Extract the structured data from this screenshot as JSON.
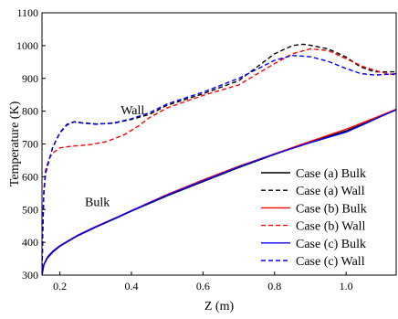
{
  "chart_data": {
    "type": "line",
    "xlabel": "Z (m)",
    "ylabel": "Temperature (K)",
    "xlim": [
      0.15,
      1.14
    ],
    "ylim": [
      300,
      1100
    ],
    "xticks": [
      0.2,
      0.4,
      0.6,
      0.8,
      1.0
    ],
    "xtick_labels": [
      "0.2",
      "0.4",
      "0.6",
      "0.8",
      "1.0"
    ],
    "yticks": [
      300,
      400,
      500,
      600,
      700,
      800,
      900,
      1000,
      1100
    ],
    "ytick_labels": [
      "300",
      "400",
      "500",
      "600",
      "700",
      "800",
      "900",
      "1000",
      "1100"
    ],
    "grid": false,
    "legend_position": "bottom-right",
    "annotations": [
      {
        "text": "Wall",
        "x": 0.37,
        "y": 790
      },
      {
        "text": "Bulk",
        "x": 0.27,
        "y": 510
      }
    ],
    "series": [
      {
        "name": "Case (a) Bulk",
        "color": "#000000",
        "dash": "solid",
        "points": [
          [
            0.15,
            300
          ],
          [
            0.155,
            330
          ],
          [
            0.165,
            352
          ],
          [
            0.18,
            370
          ],
          [
            0.2,
            388
          ],
          [
            0.25,
            420
          ],
          [
            0.3,
            446
          ],
          [
            0.35,
            470
          ],
          [
            0.4,
            495
          ],
          [
            0.5,
            542
          ],
          [
            0.6,
            585
          ],
          [
            0.7,
            628
          ],
          [
            0.8,
            668
          ],
          [
            0.9,
            706
          ],
          [
            1.0,
            740
          ],
          [
            1.05,
            762
          ],
          [
            1.1,
            786
          ],
          [
            1.14,
            805
          ]
        ]
      },
      {
        "name": "Case (a) Wall",
        "color": "#000000",
        "dash": "dashed",
        "points": [
          [
            0.15,
            300
          ],
          [
            0.152,
            420
          ],
          [
            0.155,
            545
          ],
          [
            0.16,
            610
          ],
          [
            0.17,
            650
          ],
          [
            0.18,
            690
          ],
          [
            0.2,
            735
          ],
          [
            0.22,
            760
          ],
          [
            0.24,
            768
          ],
          [
            0.26,
            765
          ],
          [
            0.3,
            761
          ],
          [
            0.35,
            763
          ],
          [
            0.4,
            775
          ],
          [
            0.45,
            790
          ],
          [
            0.5,
            818
          ],
          [
            0.6,
            853
          ],
          [
            0.7,
            893
          ],
          [
            0.8,
            975
          ],
          [
            0.85,
            1000
          ],
          [
            0.88,
            1004
          ],
          [
            0.9,
            1001
          ],
          [
            0.95,
            990
          ],
          [
            1.0,
            965
          ],
          [
            1.04,
            935
          ],
          [
            1.08,
            920
          ],
          [
            1.14,
            920
          ]
        ]
      },
      {
        "name": "Case (b) Bulk",
        "color": "#ff0000",
        "dash": "solid",
        "points": [
          [
            0.15,
            300
          ],
          [
            0.155,
            332
          ],
          [
            0.165,
            355
          ],
          [
            0.18,
            373
          ],
          [
            0.2,
            390
          ],
          [
            0.25,
            422
          ],
          [
            0.3,
            448
          ],
          [
            0.35,
            472
          ],
          [
            0.4,
            497
          ],
          [
            0.5,
            546
          ],
          [
            0.6,
            590
          ],
          [
            0.7,
            632
          ],
          [
            0.8,
            670
          ],
          [
            0.9,
            708
          ],
          [
            1.0,
            745
          ],
          [
            1.05,
            766
          ],
          [
            1.1,
            788
          ],
          [
            1.14,
            806
          ]
        ]
      },
      {
        "name": "Case (b) Wall",
        "color": "#ff0000",
        "dash": "dashed",
        "points": [
          [
            0.15,
            300
          ],
          [
            0.152,
            430
          ],
          [
            0.155,
            560
          ],
          [
            0.16,
            620
          ],
          [
            0.17,
            655
          ],
          [
            0.18,
            672
          ],
          [
            0.2,
            688
          ],
          [
            0.23,
            693
          ],
          [
            0.28,
            697
          ],
          [
            0.33,
            707
          ],
          [
            0.38,
            728
          ],
          [
            0.42,
            755
          ],
          [
            0.45,
            780
          ],
          [
            0.5,
            810
          ],
          [
            0.6,
            848
          ],
          [
            0.7,
            880
          ],
          [
            0.8,
            945
          ],
          [
            0.85,
            975
          ],
          [
            0.9,
            990
          ],
          [
            0.95,
            985
          ],
          [
            1.0,
            960
          ],
          [
            1.05,
            935
          ],
          [
            1.1,
            918
          ],
          [
            1.14,
            910
          ]
        ]
      },
      {
        "name": "Case (c) Bulk",
        "color": "#0000ff",
        "dash": "solid",
        "points": [
          [
            0.15,
            300
          ],
          [
            0.155,
            331
          ],
          [
            0.165,
            354
          ],
          [
            0.18,
            372
          ],
          [
            0.2,
            389
          ],
          [
            0.25,
            421
          ],
          [
            0.3,
            447
          ],
          [
            0.35,
            471
          ],
          [
            0.4,
            496
          ],
          [
            0.5,
            544
          ],
          [
            0.6,
            587
          ],
          [
            0.7,
            630
          ],
          [
            0.8,
            669
          ],
          [
            0.9,
            704
          ],
          [
            1.0,
            736
          ],
          [
            1.05,
            760
          ],
          [
            1.1,
            785
          ],
          [
            1.14,
            804
          ]
        ]
      },
      {
        "name": "Case (c) Wall",
        "color": "#0000ff",
        "dash": "dashed",
        "points": [
          [
            0.15,
            300
          ],
          [
            0.152,
            425
          ],
          [
            0.155,
            550
          ],
          [
            0.16,
            612
          ],
          [
            0.17,
            652
          ],
          [
            0.18,
            690
          ],
          [
            0.2,
            733
          ],
          [
            0.22,
            758
          ],
          [
            0.24,
            767
          ],
          [
            0.26,
            764
          ],
          [
            0.3,
            760
          ],
          [
            0.35,
            764
          ],
          [
            0.4,
            777
          ],
          [
            0.45,
            795
          ],
          [
            0.5,
            822
          ],
          [
            0.6,
            858
          ],
          [
            0.7,
            900
          ],
          [
            0.8,
            955
          ],
          [
            0.85,
            970
          ],
          [
            0.9,
            966
          ],
          [
            0.95,
            952
          ],
          [
            1.0,
            930
          ],
          [
            1.04,
            915
          ],
          [
            1.08,
            910
          ],
          [
            1.14,
            914
          ]
        ]
      }
    ]
  }
}
